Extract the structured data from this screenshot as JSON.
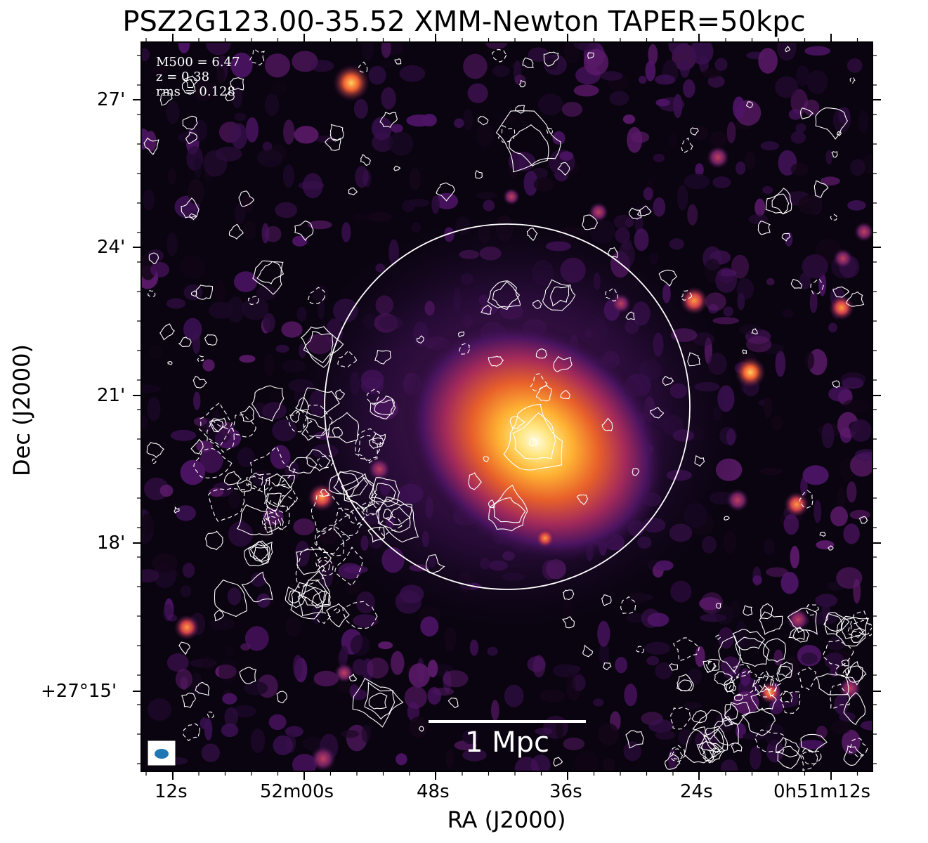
{
  "title": "PSZ2G123.00-35.52 XMM-Newton TAPER=50kpc",
  "xlabel": "RA (J2000)",
  "ylabel": "Dec (J2000)",
  "x_ticks": [
    "12s",
    "52m00s",
    "48s",
    "36s",
    "24s",
    "0h51m12s"
  ],
  "y_ticks": [
    "27'",
    "24'",
    "21'",
    "18'",
    "+27°15'"
  ],
  "info": {
    "mass": "M500 = 6.47",
    "redshift": "z = 0.38",
    "rms": "rms = 0.128"
  },
  "scalebar": {
    "label": "1 Mpc"
  },
  "colors": {
    "background": "#0a0410",
    "cluster_core": "#fff3a0",
    "contour": "#ffffff",
    "beam": "#1f77b4"
  },
  "icons": {
    "beam": "beam-ellipse-icon",
    "r500_circle": "r500-circle-icon"
  }
}
